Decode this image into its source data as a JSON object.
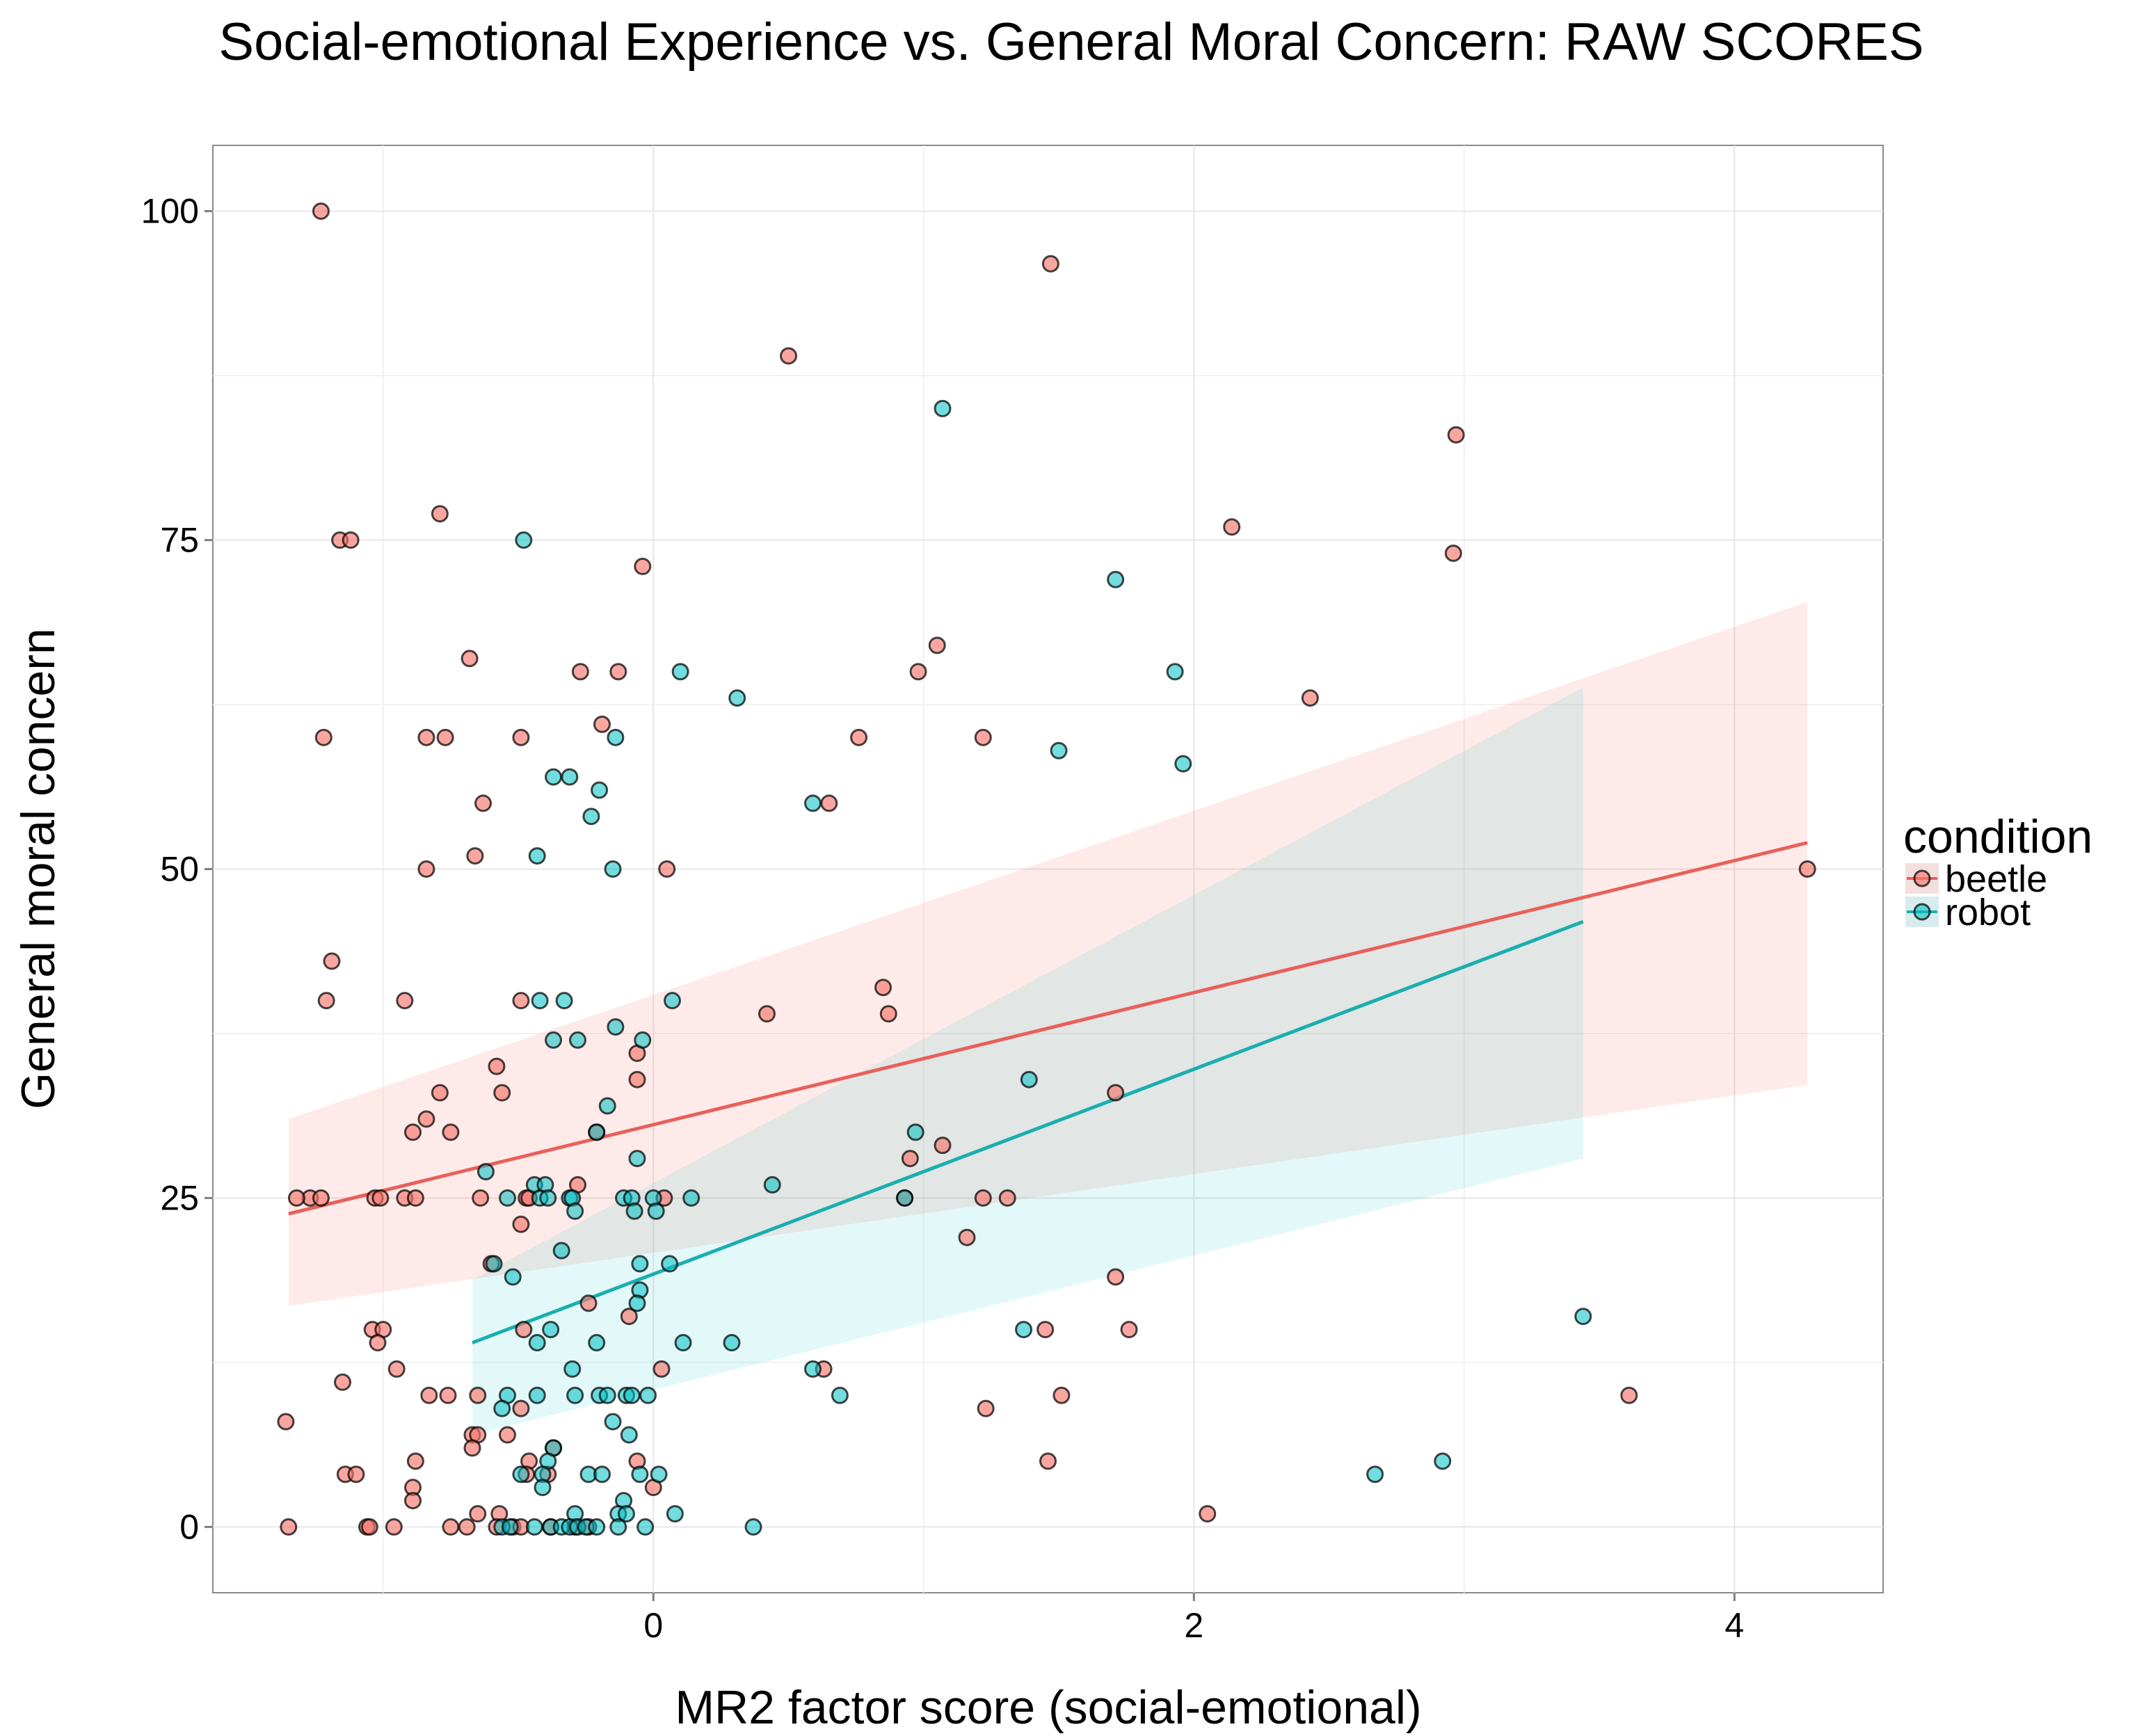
{
  "chart_data": {
    "type": "scatter",
    "title": "Social-emotional Experience vs. General Moral Concern: RAW SCORES",
    "xlabel": "MR2 factor score (social-emotional)",
    "ylabel": "General moral concern",
    "xlim": [
      -1.63,
      4.55
    ],
    "ylim": [
      -5,
      105
    ],
    "xticks": [
      0,
      2,
      4
    ],
    "xtick_labels": [
      "0",
      "2",
      "4"
    ],
    "yticks": [
      0,
      25,
      50,
      75,
      100
    ],
    "ytick_labels": [
      "0",
      "25",
      "50",
      "75",
      "100"
    ],
    "grid": true,
    "legend": {
      "title": "condition",
      "placement": "right",
      "entries": [
        "beetle",
        "robot"
      ]
    },
    "colors": {
      "beetle": "#F8766D",
      "robot": "#00BFC4",
      "beetle_line": "#E8605A",
      "robot_line": "#1AAEB0"
    },
    "series": [
      {
        "name": "beetle",
        "points": [
          [
            -1.23,
            100
          ],
          [
            1.47,
            96
          ],
          [
            0.5,
            89
          ],
          [
            2.97,
            83
          ],
          [
            -0.79,
            77
          ],
          [
            -1.16,
            75
          ],
          [
            -1.12,
            75
          ],
          [
            2.14,
            76
          ],
          [
            2.96,
            74
          ],
          [
            -0.04,
            73
          ],
          [
            1.05,
            67
          ],
          [
            -0.68,
            66
          ],
          [
            0.98,
            65
          ],
          [
            -0.27,
            65
          ],
          [
            -0.13,
            65
          ],
          [
            2.43,
            63
          ],
          [
            -1.22,
            60
          ],
          [
            -0.84,
            60
          ],
          [
            -0.77,
            60
          ],
          [
            -0.49,
            60
          ],
          [
            0.76,
            60
          ],
          [
            1.22,
            60
          ],
          [
            -0.19,
            61
          ],
          [
            0.65,
            55
          ],
          [
            -0.63,
            55
          ],
          [
            -0.66,
            51
          ],
          [
            0.05,
            50
          ],
          [
            -0.84,
            50
          ],
          [
            4.27,
            50
          ],
          [
            -1.19,
            43
          ],
          [
            -1.21,
            40
          ],
          [
            -0.92,
            40
          ],
          [
            -0.49,
            40
          ],
          [
            0.85,
            41
          ],
          [
            0.42,
            39
          ],
          [
            0.87,
            39
          ],
          [
            -0.06,
            36
          ],
          [
            -0.06,
            34
          ],
          [
            -0.58,
            35
          ],
          [
            -0.79,
            33
          ],
          [
            -0.56,
            33
          ],
          [
            1.71,
            33
          ],
          [
            -0.84,
            31
          ],
          [
            -0.89,
            30
          ],
          [
            -0.75,
            30
          ],
          [
            -0.21,
            30
          ],
          [
            1.07,
            29
          ],
          [
            0.95,
            28
          ],
          [
            -1.27,
            25
          ],
          [
            -1.32,
            25
          ],
          [
            -1.23,
            25
          ],
          [
            -1.03,
            25
          ],
          [
            -1.01,
            25
          ],
          [
            -0.92,
            25
          ],
          [
            -0.88,
            25
          ],
          [
            -0.64,
            25
          ],
          [
            -0.47,
            25
          ],
          [
            -0.46,
            25
          ],
          [
            -0.28,
            26
          ],
          [
            0.04,
            25
          ],
          [
            0.93,
            25
          ],
          [
            1.22,
            25
          ],
          [
            1.31,
            25
          ],
          [
            -0.49,
            23
          ],
          [
            1.16,
            22
          ],
          [
            -0.6,
            20
          ],
          [
            1.71,
            19
          ],
          [
            -0.24,
            17
          ],
          [
            -0.09,
            16
          ],
          [
            -0.48,
            15
          ],
          [
            1.45,
            15
          ],
          [
            1.76,
            15
          ],
          [
            -1.04,
            15
          ],
          [
            -1.0,
            15
          ],
          [
            -1.02,
            14
          ],
          [
            -0.95,
            12
          ],
          [
            0.03,
            12
          ],
          [
            0.63,
            12
          ],
          [
            -1.15,
            11
          ],
          [
            -0.83,
            10
          ],
          [
            -0.76,
            10
          ],
          [
            -0.65,
            10
          ],
          [
            3.61,
            10
          ],
          [
            1.51,
            10
          ],
          [
            -0.49,
            9
          ],
          [
            1.23,
            9
          ],
          [
            -1.36,
            8
          ],
          [
            -0.67,
            7
          ],
          [
            -0.65,
            7
          ],
          [
            -0.54,
            7
          ],
          [
            -0.67,
            6
          ],
          [
            -0.37,
            6
          ],
          [
            -0.88,
            5
          ],
          [
            -0.06,
            5
          ],
          [
            1.46,
            5
          ],
          [
            -0.46,
            5
          ],
          [
            -0.89,
            3
          ],
          [
            0.0,
            3
          ],
          [
            -1.14,
            4
          ],
          [
            -1.1,
            4
          ],
          [
            -0.39,
            4
          ],
          [
            -0.47,
            4
          ],
          [
            -0.89,
            2
          ],
          [
            2.05,
            1
          ],
          [
            -0.65,
            1
          ],
          [
            -0.57,
            1
          ],
          [
            -1.35,
            0
          ],
          [
            -1.06,
            0
          ],
          [
            -1.05,
            0
          ],
          [
            -0.96,
            0
          ],
          [
            -0.75,
            0
          ],
          [
            -0.69,
            0
          ],
          [
            -0.58,
            0
          ],
          [
            -0.52,
            0
          ],
          [
            -0.49,
            0
          ],
          [
            -0.38,
            0
          ],
          [
            -0.29,
            0
          ],
          [
            -0.24,
            0
          ]
        ],
        "fit": {
          "x": [
            -1.35,
            4.27
          ],
          "y": [
            23.8,
            52.0
          ],
          "ci_lower": [
            16.8,
            33.6
          ],
          "ci_upper": [
            31.0,
            70.3
          ]
        }
      },
      {
        "name": "robot",
        "points": [
          [
            1.07,
            85
          ],
          [
            -0.48,
            75
          ],
          [
            1.71,
            72
          ],
          [
            0.1,
            65
          ],
          [
            0.31,
            63
          ],
          [
            1.93,
            65
          ],
          [
            -0.14,
            60
          ],
          [
            1.5,
            59
          ],
          [
            0.59,
            55
          ],
          [
            1.96,
            58
          ],
          [
            -0.37,
            57
          ],
          [
            -0.31,
            57
          ],
          [
            -0.2,
            56
          ],
          [
            -0.23,
            54
          ],
          [
            -0.43,
            51
          ],
          [
            -0.15,
            50
          ],
          [
            -0.42,
            40
          ],
          [
            -0.33,
            40
          ],
          [
            0.07,
            40
          ],
          [
            -0.37,
            37
          ],
          [
            -0.28,
            37
          ],
          [
            -0.04,
            37
          ],
          [
            -0.14,
            38
          ],
          [
            1.39,
            34
          ],
          [
            -0.17,
            32
          ],
          [
            -0.21,
            30
          ],
          [
            0.97,
            30
          ],
          [
            -0.06,
            28
          ],
          [
            -0.62,
            27
          ],
          [
            0.44,
            26
          ],
          [
            -0.44,
            26
          ],
          [
            -0.4,
            26
          ],
          [
            -0.54,
            25
          ],
          [
            -0.42,
            25
          ],
          [
            -0.39,
            25
          ],
          [
            -0.31,
            25
          ],
          [
            -0.3,
            25
          ],
          [
            -0.11,
            25
          ],
          [
            -0.08,
            25
          ],
          [
            0.0,
            25
          ],
          [
            0.14,
            25
          ],
          [
            0.93,
            25
          ],
          [
            -0.29,
            24
          ],
          [
            -0.07,
            24
          ],
          [
            0.01,
            24
          ],
          [
            -0.34,
            21
          ],
          [
            -0.59,
            20
          ],
          [
            -0.05,
            20
          ],
          [
            0.06,
            20
          ],
          [
            -0.52,
            19
          ],
          [
            -0.05,
            18
          ],
          [
            -0.06,
            17
          ],
          [
            -0.43,
            14
          ],
          [
            -0.38,
            15
          ],
          [
            -0.21,
            14
          ],
          [
            0.11,
            14
          ],
          [
            0.29,
            14
          ],
          [
            1.37,
            15
          ],
          [
            3.44,
            16
          ],
          [
            -0.3,
            12
          ],
          [
            0.59,
            12
          ],
          [
            0.69,
            10
          ],
          [
            -0.54,
            10
          ],
          [
            -0.43,
            10
          ],
          [
            -0.29,
            10
          ],
          [
            -0.2,
            10
          ],
          [
            -0.17,
            10
          ],
          [
            -0.1,
            10
          ],
          [
            -0.08,
            10
          ],
          [
            -0.02,
            10
          ],
          [
            -0.56,
            9
          ],
          [
            -0.15,
            8
          ],
          [
            -0.09,
            7
          ],
          [
            -0.37,
            6
          ],
          [
            -0.39,
            5
          ],
          [
            2.92,
            5
          ],
          [
            -0.49,
            4
          ],
          [
            -0.41,
            4
          ],
          [
            -0.24,
            4
          ],
          [
            -0.19,
            4
          ],
          [
            -0.05,
            4
          ],
          [
            0.02,
            4
          ],
          [
            2.67,
            4
          ],
          [
            -0.41,
            3
          ],
          [
            -0.11,
            2
          ],
          [
            -0.29,
            1
          ],
          [
            -0.13,
            1
          ],
          [
            -0.1,
            1
          ],
          [
            0.08,
            1
          ],
          [
            -0.56,
            0
          ],
          [
            -0.53,
            0
          ],
          [
            -0.44,
            0
          ],
          [
            -0.38,
            0
          ],
          [
            -0.34,
            0
          ],
          [
            -0.31,
            0
          ],
          [
            -0.28,
            0
          ],
          [
            -0.25,
            0
          ],
          [
            -0.21,
            0
          ],
          [
            -0.13,
            0
          ],
          [
            -0.03,
            0
          ],
          [
            0.37,
            0
          ]
        ],
        "fit": {
          "x": [
            -0.67,
            3.44
          ],
          "y": [
            14.0,
            46.0
          ],
          "ci_lower": [
            7.0,
            28.0
          ],
          "ci_upper": [
            18.8,
            63.8
          ]
        }
      }
    ]
  }
}
